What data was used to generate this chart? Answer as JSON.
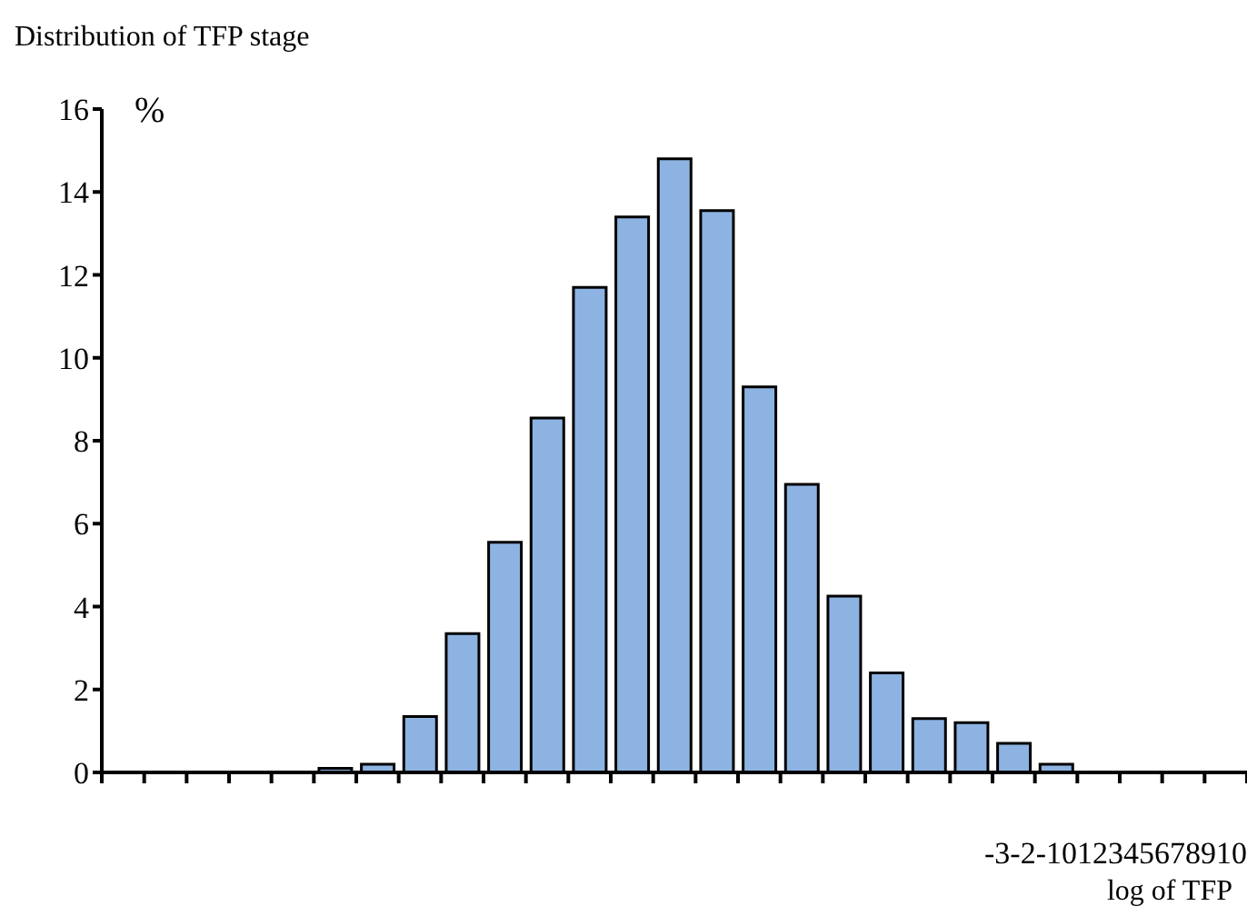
{
  "chart_data": {
    "type": "bar",
    "title": "Distribution of TFP stage",
    "xlabel": "log of TFP",
    "ylabel": "%",
    "annotations": [
      "-3-2-1012345678910"
    ],
    "categories": [
      null,
      null,
      null,
      null,
      null,
      null,
      null,
      null,
      null,
      null,
      null,
      null,
      null,
      null,
      null,
      null,
      null,
      null,
      null,
      null,
      null,
      null,
      null,
      null,
      null,
      null,
      null
    ],
    "values": [
      0,
      0,
      0,
      0,
      0,
      0.1,
      0.2,
      1.35,
      3.35,
      5.55,
      8.55,
      11.7,
      13.4,
      14.8,
      13.55,
      9.3,
      6.95,
      4.25,
      2.4,
      1.3,
      1.2,
      0.7,
      0.2,
      0,
      0,
      0,
      0
    ],
    "color": "#8db3e2",
    "ylim": [
      0,
      16
    ],
    "yticks": [
      0,
      2,
      4,
      6,
      8,
      10,
      12,
      14,
      16
    ],
    "grid": false,
    "legend": false
  }
}
